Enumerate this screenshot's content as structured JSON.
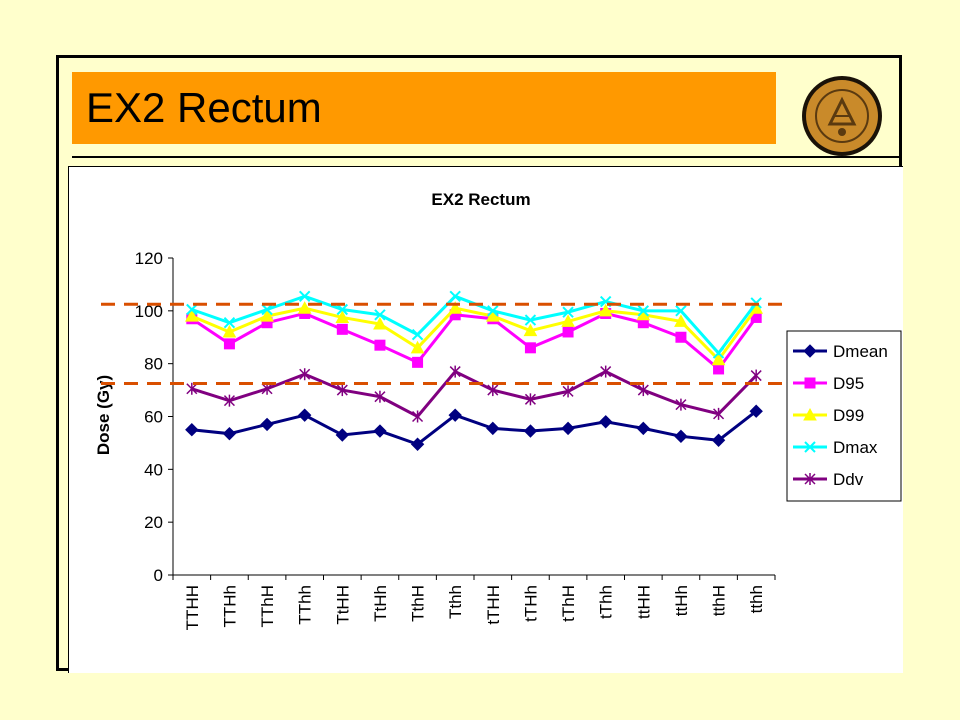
{
  "slide": {
    "title": "EX2 Rectum",
    "logo_icon": "university-seal-icon"
  },
  "colors": {
    "background": "#ffffcc",
    "title_bar": "#ff9900",
    "reference_line": "#d94f00"
  },
  "chart_data": {
    "type": "line",
    "title": "EX2 Rectum",
    "xlabel": "",
    "ylabel": "Dose (Gy)",
    "ylim": [
      0,
      120
    ],
    "yticks": [
      0,
      20,
      40,
      60,
      80,
      100,
      120
    ],
    "grid": false,
    "legend_position": "right",
    "categories": [
      "TTHH",
      "TTHh",
      "TThH",
      "TThh",
      "TtHH",
      "TtHh",
      "TthH",
      "Tthh",
      "tTHH",
      "tTHh",
      "tThH",
      "tThh",
      "ttHH",
      "ttHh",
      "tthH",
      "tthh"
    ],
    "series": [
      {
        "name": "Dmean",
        "color": "#000080",
        "marker": "diamond",
        "values": [
          55,
          53.5,
          57,
          60.5,
          53,
          54.5,
          49.5,
          60.5,
          55.5,
          54.5,
          55.5,
          58,
          55.5,
          52.5,
          51,
          62
        ]
      },
      {
        "name": "D95",
        "color": "#ff00ff",
        "marker": "square",
        "values": [
          97,
          87.5,
          95.5,
          99,
          93,
          87,
          80.5,
          98.5,
          97,
          86,
          92,
          99,
          95.5,
          90,
          78,
          97.5
        ]
      },
      {
        "name": "D99",
        "color": "#ffff00",
        "marker": "triangle",
        "values": [
          98,
          92,
          98,
          101,
          97.5,
          95,
          86,
          101,
          98,
          92.5,
          96,
          100,
          98.5,
          96,
          81.5,
          101
        ]
      },
      {
        "name": "Dmax",
        "color": "#00ffff",
        "marker": "x",
        "values": [
          100.5,
          95.5,
          100.5,
          105.5,
          100.5,
          98.5,
          91,
          105.5,
          100,
          96.5,
          99.5,
          103.5,
          100,
          100,
          84,
          103
        ]
      },
      {
        "name": "Ddv",
        "color": "#800080",
        "marker": "asterisk",
        "values": [
          70.5,
          66,
          70.5,
          76,
          70,
          67.5,
          60,
          77,
          70,
          66.5,
          69.5,
          77,
          70,
          64.5,
          61,
          75.5
        ]
      }
    ],
    "reference_lines": [
      102.5,
      72.5
    ]
  }
}
